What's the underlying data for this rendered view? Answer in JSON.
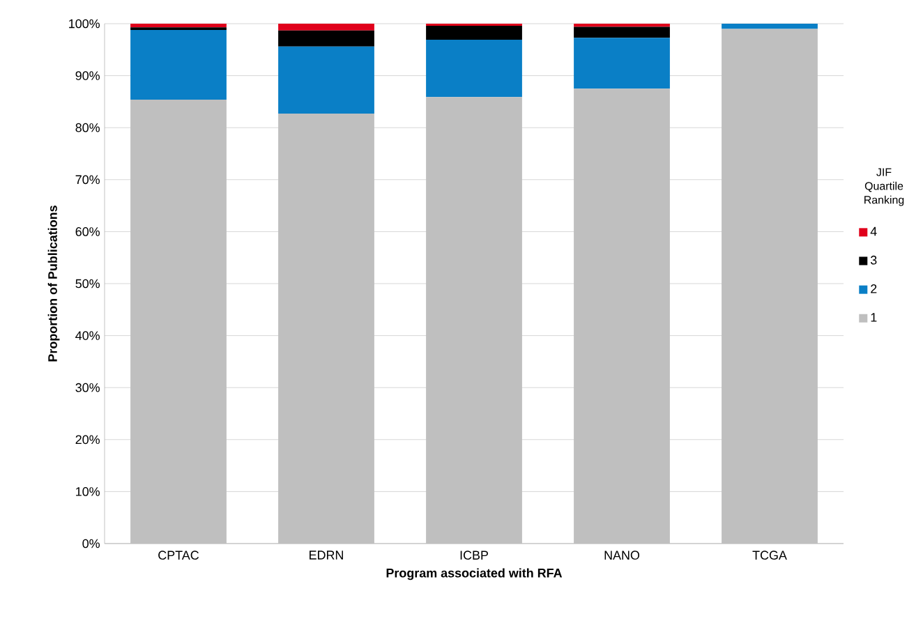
{
  "chart_data": {
    "type": "bar",
    "stacked": true,
    "xlabel": "Program associated with RFA",
    "ylabel": "Proportion of Publications",
    "legend_title": "JIF Quartile Ranking",
    "categories": [
      "CPTAC",
      "EDRN",
      "ICBP",
      "NANO",
      "TCGA"
    ],
    "series": [
      {
        "name": "1",
        "color": "#bfbfbf",
        "values": [
          85.4,
          82.7,
          85.9,
          87.5,
          99.0
        ]
      },
      {
        "name": "2",
        "color": "#0a7fc6",
        "values": [
          13.4,
          12.9,
          11.0,
          9.8,
          1.0
        ]
      },
      {
        "name": "3",
        "color": "#000000",
        "values": [
          0.5,
          3.1,
          2.7,
          2.1,
          0
        ]
      },
      {
        "name": "4",
        "color": "#e0001b",
        "values": [
          0.7,
          1.3,
          0.4,
          0.6,
          0
        ]
      }
    ],
    "ylim": [
      0,
      100
    ],
    "yticks": [
      {
        "value": 0,
        "label": "0%"
      },
      {
        "value": 10,
        "label": "10%"
      },
      {
        "value": 20,
        "label": "20%"
      },
      {
        "value": 30,
        "label": "30%"
      },
      {
        "value": 40,
        "label": "40%"
      },
      {
        "value": 50,
        "label": "50%"
      },
      {
        "value": 60,
        "label": "60%"
      },
      {
        "value": 70,
        "label": "70%"
      },
      {
        "value": 80,
        "label": "80%"
      },
      {
        "value": 90,
        "label": "90%"
      },
      {
        "value": 100,
        "label": "100%"
      }
    ],
    "grid": "y",
    "legend": "right"
  }
}
